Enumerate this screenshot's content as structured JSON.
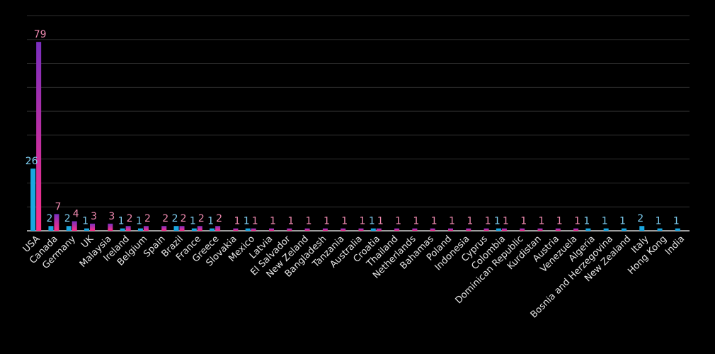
{
  "chart_data": {
    "type": "bar",
    "title": "",
    "xlabel": "",
    "ylabel": "",
    "ylim": [
      0,
      90
    ],
    "grid": true,
    "legend": "none",
    "colors": {
      "series_a": "#1aa7e0",
      "series_b_top": "#7a2fbf",
      "series_b_bottom": "#ff2f86",
      "background": "#000000",
      "grid": "#2e2e2e"
    },
    "categories": [
      "USA",
      "Canada",
      "Germany",
      "UK",
      "Malaysia",
      "Ireland",
      "Belgium",
      "Spain",
      "Brazil",
      "France",
      "Greece",
      "Slovakia",
      "Mexico",
      "Latvia",
      "El Salvador",
      "New Zeland",
      "Bangladesh",
      "Tanzania",
      "Australia",
      "Croatia",
      "Thailand",
      "Netherlands",
      "Bahamas",
      "Poland",
      "Indonesia",
      "Cyprus",
      "Colombia",
      "Dominican Republic",
      "Kurdistan",
      "Austria",
      "Venezuela",
      "Algeria",
      "Bosnia and Herzegovina",
      "New Zealand",
      "Italy",
      "Hong Kong",
      "India"
    ],
    "series": [
      {
        "values": [
          26,
          2,
          2,
          1,
          null,
          1,
          1,
          null,
          2,
          1,
          1,
          null,
          1,
          null,
          null,
          null,
          null,
          null,
          null,
          1,
          null,
          null,
          null,
          null,
          null,
          null,
          1,
          null,
          null,
          null,
          null,
          1,
          1,
          1,
          2,
          1,
          1
        ]
      },
      {
        "values": [
          79,
          7,
          4,
          3,
          3,
          2,
          2,
          2,
          2,
          2,
          2,
          1,
          1,
          1,
          1,
          1,
          1,
          1,
          1,
          1,
          1,
          1,
          1,
          1,
          1,
          1,
          1,
          1,
          1,
          1,
          1,
          null,
          null,
          null,
          null,
          null,
          null
        ]
      }
    ]
  }
}
